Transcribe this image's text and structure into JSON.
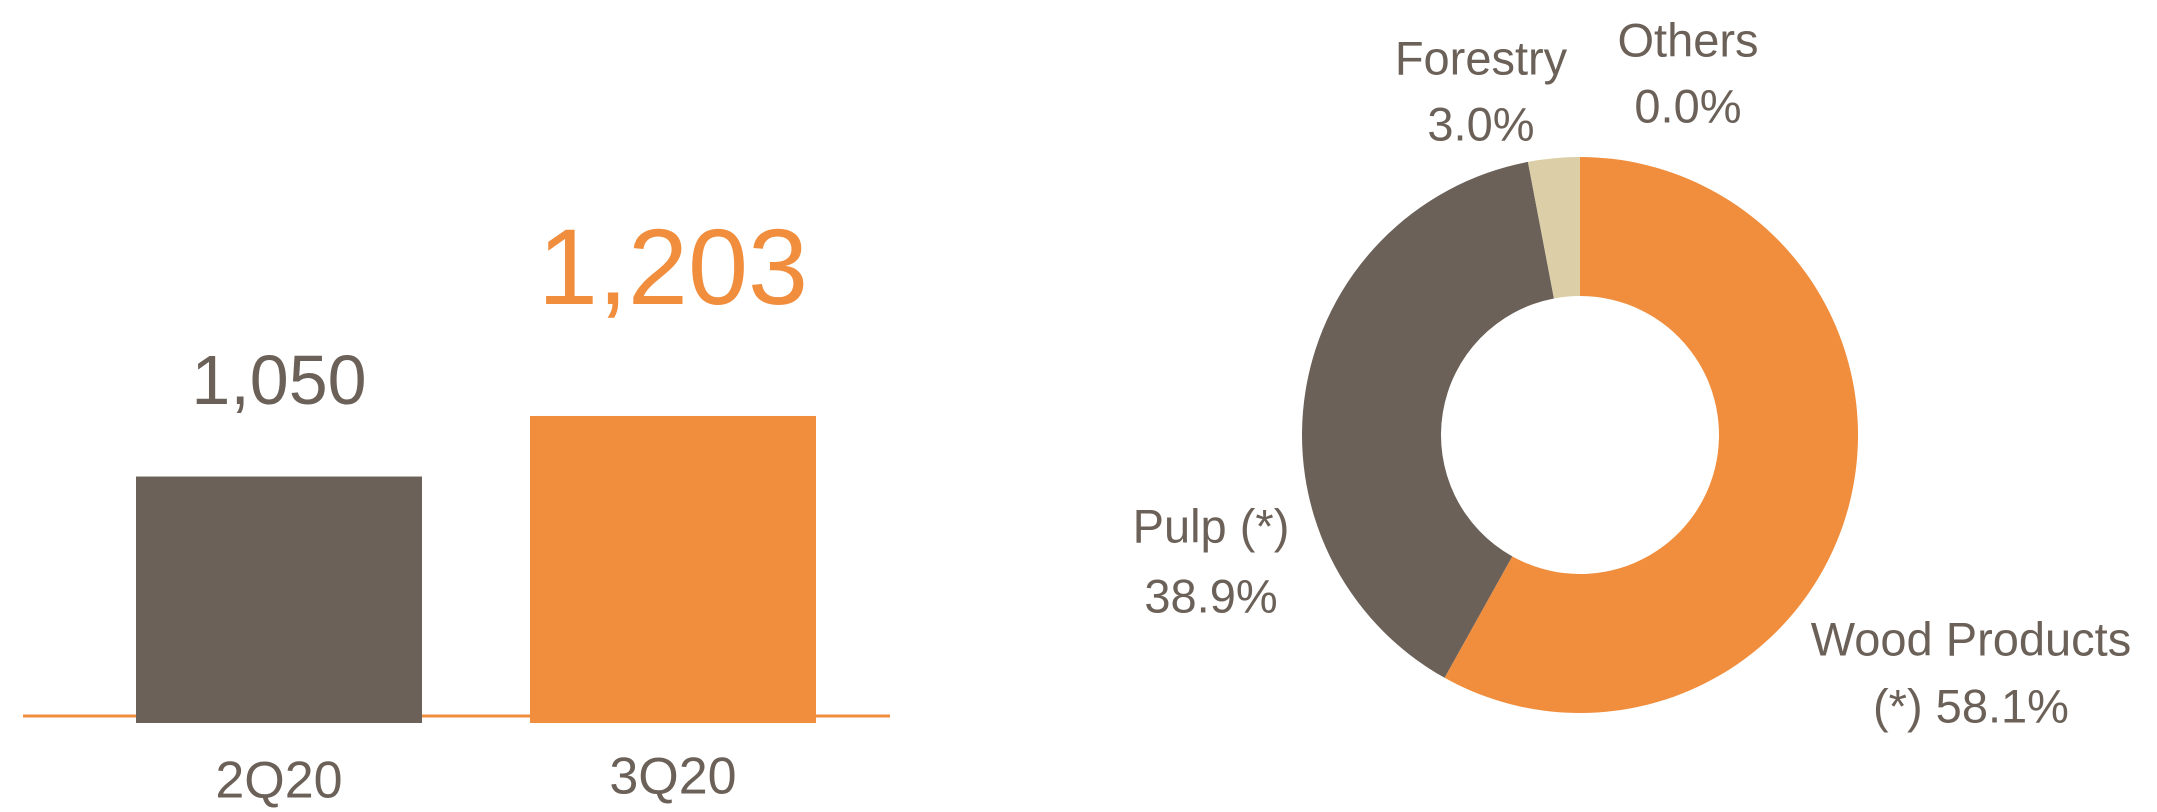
{
  "chart_data": [
    {
      "type": "bar",
      "categories": [
        "2Q20",
        "3Q20"
      ],
      "values": [
        1050,
        1203
      ],
      "value_labels": [
        "1,050",
        "1,203"
      ],
      "colors": [
        "#6b6158",
        "#f08e3e"
      ],
      "ylim": [
        445,
        1731
      ]
    },
    {
      "type": "donut",
      "categories": [
        "Wood Products",
        "Pulp (*)",
        "Forestry",
        "Others"
      ],
      "values": [
        58.1,
        38.9,
        3.0,
        0.0
      ],
      "value_labels": [
        "(*) 58.1%",
        "38.9%",
        "3.0%",
        "0.0%"
      ],
      "colors": [
        "#f08e3e",
        "#6b6158",
        "#dccfa8",
        "#a5a5a5"
      ]
    }
  ]
}
